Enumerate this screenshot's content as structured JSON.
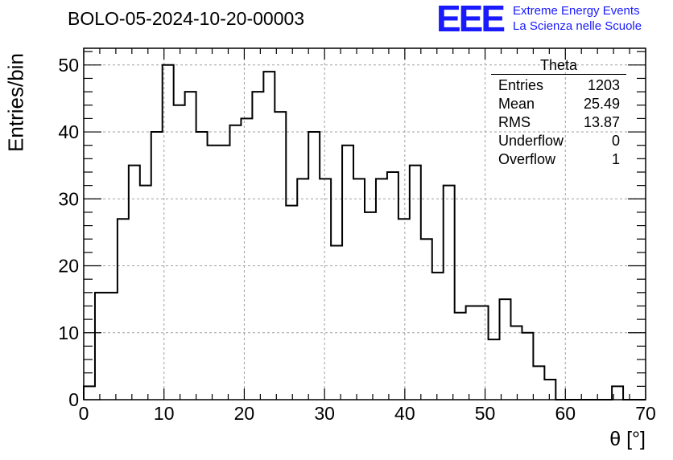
{
  "title": "BOLO-05-2024-10-20-00003",
  "logo": {
    "mark": "EEE",
    "line1": "Extreme Energy Events",
    "line2": "La Scienza nelle Scuole",
    "color": "#1a1aff"
  },
  "stats_box": {
    "title": "Theta",
    "rows": [
      {
        "label": "Entries",
        "value": "1203"
      },
      {
        "label": "Mean",
        "value": "25.49"
      },
      {
        "label": "RMS",
        "value": "13.87"
      },
      {
        "label": "Underflow",
        "value": "0"
      },
      {
        "label": "Overflow",
        "value": "1"
      }
    ]
  },
  "chart_data": {
    "type": "bar",
    "style": "step-histogram",
    "xlabel": "θ [°]",
    "ylabel": "Entries/bin",
    "xlim": [
      0,
      70
    ],
    "ylim": [
      0,
      52.5
    ],
    "grid": true,
    "bin_edges_start": 0,
    "bin_width": 1.4,
    "values": [
      2,
      16,
      16,
      27,
      35,
      32,
      40,
      50,
      44,
      46,
      40,
      38,
      38,
      41,
      42,
      46,
      49,
      43,
      29,
      33,
      40,
      33,
      23,
      38,
      33,
      28,
      33,
      34,
      27,
      35,
      24,
      19,
      32,
      13,
      14,
      14,
      9,
      15,
      11,
      10,
      5,
      3,
      0,
      0,
      0,
      0,
      0,
      2,
      0,
      0
    ],
    "x_ticks": [
      "0",
      "10",
      "20",
      "30",
      "40",
      "50",
      "60",
      "70"
    ],
    "y_ticks": [
      "0",
      "10",
      "20",
      "30",
      "40",
      "50"
    ]
  }
}
